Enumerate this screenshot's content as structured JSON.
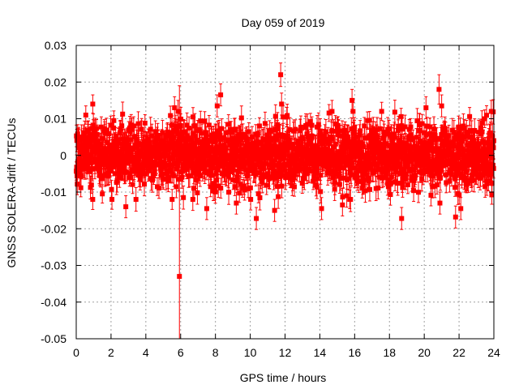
{
  "chart_data": {
    "type": "scatter",
    "title": "Day 059 of 2019",
    "xlabel": "GPS time / hours",
    "ylabel": "GNSS SOLERA-drift / TECUs",
    "xlim": [
      0,
      24
    ],
    "ylim": [
      -0.05,
      0.03
    ],
    "grid": true,
    "legend": "none",
    "x_ticks": [
      0,
      2,
      4,
      6,
      8,
      10,
      12,
      14,
      16,
      18,
      20,
      22,
      24
    ],
    "x_tick_labels": [
      "0",
      "2",
      "4",
      "6",
      "8",
      "10",
      "12",
      "14",
      "16",
      "18",
      "20",
      "22",
      "24"
    ],
    "y_ticks": [
      -0.05,
      -0.04,
      -0.03,
      -0.02,
      -0.01,
      0,
      0.01,
      0.02,
      0.03
    ],
    "y_tick_labels": [
      "-0.05",
      "-0.04",
      "-0.03",
      "-0.02",
      "-0.01",
      "0",
      "0.01",
      "0.02",
      "0.03"
    ],
    "series": [
      {
        "name": "SOLERA drift",
        "color": "#ff0000",
        "marker": "square",
        "error_bars": true,
        "bulk": {
          "count": 2000,
          "noise_sigma": 0.0042,
          "typical_error": 0.0028,
          "seed": 59
        },
        "outliers": [
          {
            "x": 5.93,
            "y": -0.033,
            "err": 0.052
          },
          {
            "x": 11.75,
            "y": 0.022,
            "err": 0.0032
          },
          {
            "x": 11.8,
            "y": 0.014,
            "err": 0.003
          },
          {
            "x": 8.3,
            "y": 0.0165,
            "err": 0.003
          },
          {
            "x": 8.1,
            "y": 0.0135,
            "err": 0.003
          },
          {
            "x": 5.65,
            "y": 0.013,
            "err": 0.003
          },
          {
            "x": 5.85,
            "y": 0.012,
            "err": 0.003
          },
          {
            "x": 0.95,
            "y": 0.014,
            "err": 0.0025
          },
          {
            "x": 0.55,
            "y": 0.011,
            "err": 0.0025
          },
          {
            "x": 15.85,
            "y": 0.015,
            "err": 0.003
          },
          {
            "x": 14.7,
            "y": 0.012,
            "err": 0.003
          },
          {
            "x": 20.85,
            "y": 0.018,
            "err": 0.004
          },
          {
            "x": 21.0,
            "y": 0.0135,
            "err": 0.003
          },
          {
            "x": 20.1,
            "y": 0.013,
            "err": 0.003
          },
          {
            "x": 23.85,
            "y": 0.012,
            "err": 0.003
          },
          {
            "x": 2.85,
            "y": -0.014,
            "err": 0.003
          },
          {
            "x": 1.5,
            "y": -0.0105,
            "err": 0.0025
          },
          {
            "x": 7.5,
            "y": -0.0145,
            "err": 0.003
          },
          {
            "x": 10.35,
            "y": -0.0172,
            "err": 0.003
          },
          {
            "x": 11.4,
            "y": -0.015,
            "err": 0.003
          },
          {
            "x": 14.1,
            "y": -0.0145,
            "err": 0.003
          },
          {
            "x": 15.3,
            "y": -0.0135,
            "err": 0.003
          },
          {
            "x": 18.7,
            "y": -0.0172,
            "err": 0.003
          },
          {
            "x": 21.8,
            "y": -0.0168,
            "err": 0.003
          },
          {
            "x": 22.1,
            "y": -0.0145,
            "err": 0.003
          },
          {
            "x": 20.9,
            "y": -0.013,
            "err": 0.003
          },
          {
            "x": 6.7,
            "y": -0.012,
            "err": 0.003
          },
          {
            "x": 9.2,
            "y": -0.013,
            "err": 0.003
          }
        ]
      }
    ]
  }
}
